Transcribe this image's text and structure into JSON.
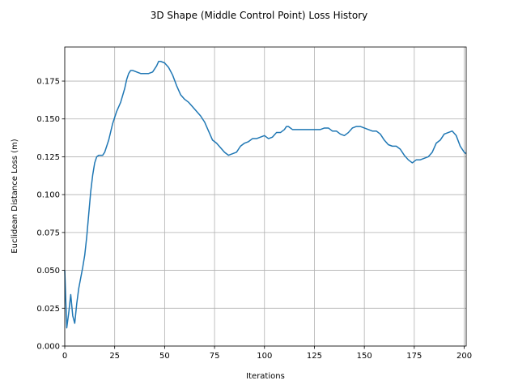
{
  "chart_data": {
    "type": "line",
    "title": "3D Shape (Middle Control Point) Loss History",
    "x_label": "Iterations",
    "y_label": "Euclidean Distance Loss (m)",
    "grid": true,
    "xlim": [
      0,
      201
    ],
    "ylim": [
      0,
      0.1975
    ],
    "xticks": [
      0,
      25,
      50,
      75,
      100,
      125,
      150,
      175,
      200
    ],
    "yticks": [
      {
        "value": 0,
        "label": "0.000"
      },
      {
        "value": 0.025,
        "label": "0.025"
      },
      {
        "value": 0.05,
        "label": "0.050"
      },
      {
        "value": 0.075,
        "label": "0.075"
      },
      {
        "value": 0.1,
        "label": "0.100"
      },
      {
        "value": 0.125,
        "label": "0.125"
      },
      {
        "value": 0.15,
        "label": "0.150"
      },
      {
        "value": 0.175,
        "label": "0.175"
      }
    ],
    "x": [
      0,
      1,
      2,
      3,
      4,
      5,
      6,
      7,
      8,
      9,
      10,
      11,
      12,
      13,
      14,
      15,
      16,
      17,
      18,
      19,
      20,
      22,
      24,
      26,
      28,
      30,
      31,
      32,
      33,
      34,
      36,
      38,
      40,
      42,
      44,
      46,
      47,
      48,
      50,
      52,
      54,
      56,
      58,
      60,
      62,
      64,
      66,
      68,
      70,
      72,
      74,
      76,
      78,
      80,
      82,
      84,
      86,
      88,
      90,
      92,
      94,
      96,
      98,
      100,
      102,
      104,
      106,
      108,
      110,
      111,
      112,
      114,
      116,
      118,
      120,
      122,
      124,
      126,
      128,
      130,
      132,
      134,
      136,
      138,
      140,
      142,
      144,
      146,
      148,
      150,
      152,
      154,
      156,
      158,
      160,
      162,
      164,
      166,
      168,
      170,
      172,
      174,
      176,
      178,
      180,
      182,
      184,
      186,
      188,
      190,
      192,
      194,
      196,
      198,
      200,
      201
    ],
    "series": [
      {
        "color": "#1f77b4",
        "values": [
          0.05,
          0.012,
          0.022,
          0.034,
          0.02,
          0.015,
          0.028,
          0.038,
          0.045,
          0.052,
          0.06,
          0.072,
          0.087,
          0.102,
          0.113,
          0.121,
          0.125,
          0.126,
          0.126,
          0.126,
          0.128,
          0.136,
          0.147,
          0.155,
          0.161,
          0.17,
          0.176,
          0.18,
          0.182,
          0.182,
          0.181,
          0.18,
          0.18,
          0.18,
          0.181,
          0.185,
          0.188,
          0.188,
          0.187,
          0.184,
          0.179,
          0.172,
          0.166,
          0.163,
          0.161,
          0.158,
          0.155,
          0.152,
          0.148,
          0.142,
          0.136,
          0.134,
          0.131,
          0.128,
          0.126,
          0.127,
          0.128,
          0.132,
          0.134,
          0.135,
          0.137,
          0.137,
          0.138,
          0.139,
          0.137,
          0.138,
          0.141,
          0.141,
          0.143,
          0.145,
          0.145,
          0.143,
          0.143,
          0.143,
          0.143,
          0.143,
          0.143,
          0.143,
          0.143,
          0.144,
          0.144,
          0.142,
          0.142,
          0.14,
          0.139,
          0.141,
          0.144,
          0.145,
          0.145,
          0.144,
          0.143,
          0.142,
          0.142,
          0.14,
          0.136,
          0.133,
          0.132,
          0.132,
          0.13,
          0.126,
          0.123,
          0.121,
          0.123,
          0.123,
          0.124,
          0.125,
          0.128,
          0.134,
          0.136,
          0.14,
          0.141,
          0.142,
          0.139,
          0.132,
          0.128,
          0.127
        ]
      }
    ]
  }
}
